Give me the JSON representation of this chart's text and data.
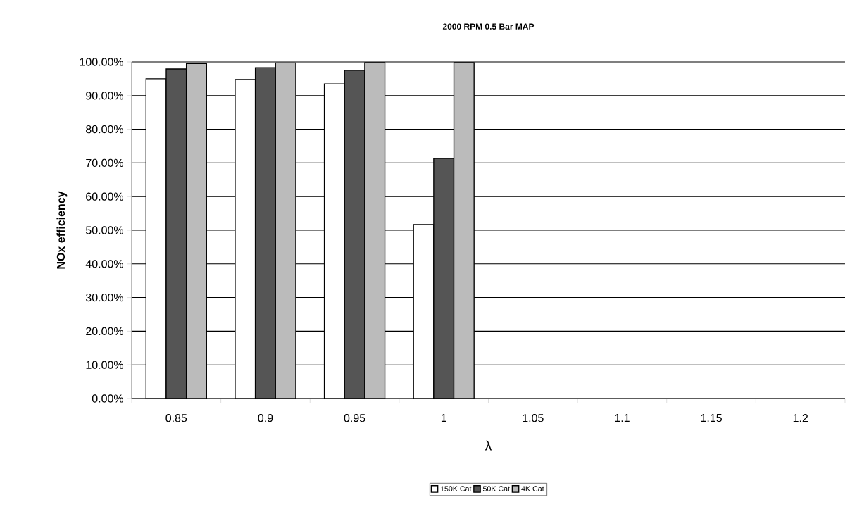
{
  "chart_data": {
    "type": "bar",
    "title": "2000 RPM 0.5 Bar MAP",
    "xlabel": "λ",
    "ylabel": "NOx efficiency",
    "categories": [
      "0.85",
      "0.9",
      "0.95",
      "1",
      "1.05",
      "1.1",
      "1.15",
      "1.2"
    ],
    "series": [
      {
        "name": "150K Cat",
        "color": "#ffffff",
        "values": [
          95.0,
          94.8,
          93.5,
          51.7,
          null,
          null,
          null,
          null
        ]
      },
      {
        "name": "50K Cat",
        "color": "#555555",
        "values": [
          97.9,
          98.3,
          97.5,
          71.3,
          null,
          null,
          null,
          null
        ]
      },
      {
        "name": "4K Cat",
        "color": "#bbbbbb",
        "values": [
          99.5,
          99.7,
          99.8,
          99.8,
          null,
          null,
          null,
          null
        ]
      }
    ],
    "ylim": [
      0,
      100
    ],
    "yticks": [
      {
        "value": 0,
        "label": "0.00%"
      },
      {
        "value": 10,
        "label": "10.00%"
      },
      {
        "value": 20,
        "label": "20.00%"
      },
      {
        "value": 30,
        "label": "30.00%"
      },
      {
        "value": 40,
        "label": "40.00%"
      },
      {
        "value": 50,
        "label": "50.00%"
      },
      {
        "value": 60,
        "label": "60.00%"
      },
      {
        "value": 70,
        "label": "70.00%"
      },
      {
        "value": 80,
        "label": "80.00%"
      },
      {
        "value": 90,
        "label": "90.00%"
      },
      {
        "value": 100,
        "label": "100.00%"
      }
    ],
    "grid": "y",
    "legend": "bottom"
  }
}
